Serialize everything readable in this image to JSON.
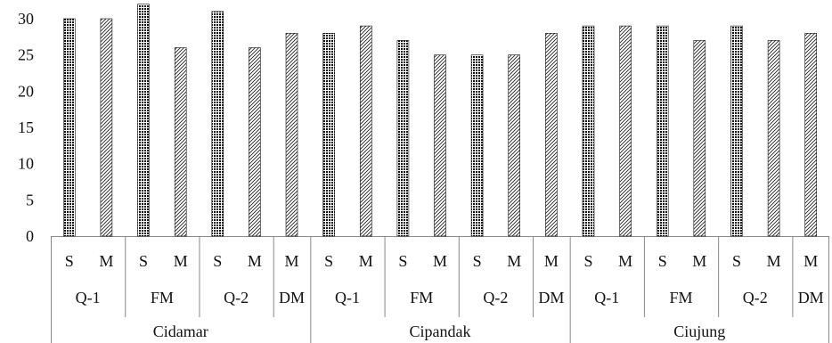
{
  "chart_data": {
    "type": "bar",
    "title": "",
    "xlabel": "",
    "ylabel": "",
    "ylim": [
      0,
      30
    ],
    "yticks": [
      0,
      5,
      10,
      15,
      20,
      25,
      30
    ],
    "grid": false,
    "legend": "none",
    "fills": {
      "S": {
        "pattern": "dense-crosshatch",
        "color": "#111111"
      },
      "M": {
        "pattern": "diagonal-hatch",
        "color": "#222222"
      }
    },
    "sites": [
      {
        "name": "Cidamar",
        "groups": [
          {
            "name": "Q-1",
            "bars": [
              {
                "label": "S",
                "value": 30
              },
              {
                "label": "M",
                "value": 30
              }
            ]
          },
          {
            "name": "FM",
            "bars": [
              {
                "label": "S",
                "value": 32
              },
              {
                "label": "M",
                "value": 26
              }
            ]
          },
          {
            "name": "Q-2",
            "bars": [
              {
                "label": "S",
                "value": 31
              },
              {
                "label": "M",
                "value": 26
              }
            ]
          },
          {
            "name": "DM",
            "bars": [
              {
                "label": "M",
                "value": 28
              }
            ]
          }
        ]
      },
      {
        "name": "Cipandak",
        "groups": [
          {
            "name": "Q-1",
            "bars": [
              {
                "label": "S",
                "value": 28
              },
              {
                "label": "M",
                "value": 29
              }
            ]
          },
          {
            "name": "FM",
            "bars": [
              {
                "label": "S",
                "value": 27
              },
              {
                "label": "M",
                "value": 25
              }
            ]
          },
          {
            "name": "Q-2",
            "bars": [
              {
                "label": "S",
                "value": 25
              },
              {
                "label": "M",
                "value": 25
              }
            ]
          },
          {
            "name": "DM",
            "bars": [
              {
                "label": "M",
                "value": 28
              }
            ]
          }
        ]
      },
      {
        "name": "Ciujung",
        "groups": [
          {
            "name": "Q-1",
            "bars": [
              {
                "label": "S",
                "value": 29
              },
              {
                "label": "M",
                "value": 29
              }
            ]
          },
          {
            "name": "FM",
            "bars": [
              {
                "label": "S",
                "value": 29
              },
              {
                "label": "M",
                "value": 27
              }
            ]
          },
          {
            "name": "Q-2",
            "bars": [
              {
                "label": "S",
                "value": 29
              },
              {
                "label": "M",
                "value": 27
              }
            ]
          },
          {
            "name": "DM",
            "bars": [
              {
                "label": "M",
                "value": 28
              }
            ]
          }
        ]
      }
    ]
  }
}
